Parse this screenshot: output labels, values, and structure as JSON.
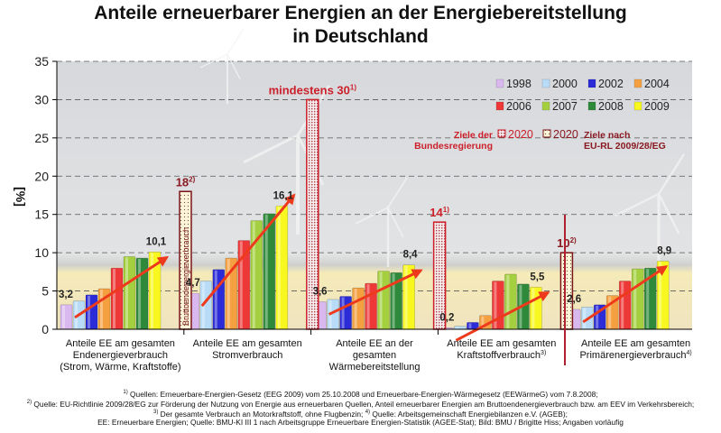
{
  "chart_data": {
    "type": "bar",
    "title_lines": [
      "Anteile erneuerbarer Energien an der Energiebereitstellung",
      "in Deutschland"
    ],
    "ylabel": "[%]",
    "ylim": [
      0,
      35
    ],
    "yticks": [
      0,
      5,
      10,
      15,
      20,
      25,
      30,
      35
    ],
    "grid": true,
    "legend_position": "top-right",
    "categories": [
      [
        "Anteile EE am gesamten",
        "Endenergieverbrauch",
        "(Strom, Wärme, Kraftstoffe)"
      ],
      [
        "Anteile EE am gesamten",
        "Stromverbrauch"
      ],
      [
        "Anteile EE an der",
        "gesamten",
        "Wärmebereitstellung"
      ],
      [
        "Anteile EE am gesamten",
        "Kraftstoffverbrauch"
      ],
      [
        "Anteile EE am gesamten",
        "Primärenergieverbrauch"
      ]
    ],
    "category_footnotes": [
      "",
      "",
      "",
      "3)",
      "4)"
    ],
    "series": [
      {
        "name": "1998",
        "color": "#d9b8f0",
        "values": [
          3.2,
          4.7,
          3.6,
          0.2,
          2.6
        ]
      },
      {
        "name": "2000",
        "color": "#b8dcf8",
        "values": [
          3.7,
          6.3,
          3.9,
          0.4,
          2.9
        ]
      },
      {
        "name": "2002",
        "color": "#2b2bd8",
        "values": [
          4.5,
          7.8,
          4.3,
          0.9,
          3.2
        ]
      },
      {
        "name": "2004",
        "color": "#f5a040",
        "values": [
          5.3,
          9.3,
          5.4,
          1.8,
          4.4
        ]
      },
      {
        "name": "2006",
        "color": "#ee3838",
        "values": [
          8.0,
          11.6,
          6.0,
          6.3,
          6.3
        ]
      },
      {
        "name": "2007",
        "color": "#a4d040",
        "values": [
          9.5,
          14.2,
          7.6,
          7.2,
          7.9
        ]
      },
      {
        "name": "2008",
        "color": "#2e8a3a",
        "values": [
          9.3,
          15.1,
          7.4,
          5.9,
          8.0
        ]
      },
      {
        "name": "2009",
        "color": "#f8f820",
        "values": [
          10.1,
          16.1,
          8.4,
          5.5,
          8.9
        ]
      }
    ],
    "data_labels": [
      {
        "category": 0,
        "series": "1998",
        "text": "3,2"
      },
      {
        "category": 0,
        "series": "2009",
        "text": "10,1"
      },
      {
        "category": 1,
        "series": "1998",
        "text": "4,7"
      },
      {
        "category": 1,
        "series": "2009",
        "text": "16,1"
      },
      {
        "category": 2,
        "series": "1998",
        "text": "3,6"
      },
      {
        "category": 2,
        "series": "2009",
        "text": "8,4"
      },
      {
        "category": 3,
        "series": "1998",
        "text": "0,2"
      },
      {
        "category": 3,
        "series": "2009",
        "text": "5,5"
      },
      {
        "category": 4,
        "series": "1998",
        "text": "2,6"
      },
      {
        "category": 4,
        "series": "2009",
        "text": "8,9"
      }
    ],
    "targets_2020": [
      {
        "category": 0,
        "value": 18,
        "label": "18",
        "footnote": "2)",
        "kind": "eu",
        "inner_text": "Bruttoendenergieverbrauch"
      },
      {
        "category": 1,
        "value": 30,
        "label": "mindestens 30",
        "footnote": "1)",
        "kind": "government"
      },
      {
        "category": 2,
        "value": 14,
        "label": "14",
        "footnote": "1)",
        "kind": "government"
      },
      {
        "category": 3,
        "value": 10,
        "label": "10",
        "footnote": "2)",
        "kind": "eu"
      }
    ],
    "legend": {
      "years": [
        "1998",
        "2000",
        "2002",
        "2004",
        "2006",
        "2007",
        "2008",
        "2009"
      ],
      "government_target_label": [
        "Ziele der",
        "Bundesregierung"
      ],
      "government_target_year": "2020",
      "eu_target_year": "2020",
      "eu_target_label": [
        "Ziele nach",
        "EU-RL 2009/28/EG"
      ]
    },
    "colors": {
      "target_border": "#cc1f2a",
      "eu_target_border": "#7a1418",
      "arrow": "#ee3a1c",
      "label_red": "#cc1f2a",
      "label_darkred": "#8a1a22"
    }
  },
  "footer": {
    "line1_sup": "1)",
    "line1": "Quellen: Erneuerbare-Energien-Gesetz (EEG 2009) vom 25.10.2008 und Erneuerbare-Energien-Wärmegesetz (EEWärmeG) vom 7.8.2008;",
    "line2_sup": "2)",
    "line2": "Quelle: EU-Richtlinie 2009/28/EG zur Förderung der Nutzung von Energie aus erneuerbaren Quellen, Anteil erneuerbarer Energien am Bruttoendenergieverbrauch bzw. am EEV im Verkehrsbereich;",
    "line3_sup_a": "3)",
    "line3_a": "Der gesamte Verbrauch an Motorkraftstoff, ohne Flugbenzin;",
    "line3_sup_b": "4)",
    "line3_b": "Quelle: Arbeitsgemeinschaft Energiebilanzen e.V. (AGEB);",
    "line4": "EE: Erneuerbare Energien; Quelle: BMU-KI III 1 nach Arbeitsgruppe Erneuerbare Energien-Statistik (AGEE-Stat); Bild: BMU / Brigitte Hiss; Angaben vorläufig"
  }
}
